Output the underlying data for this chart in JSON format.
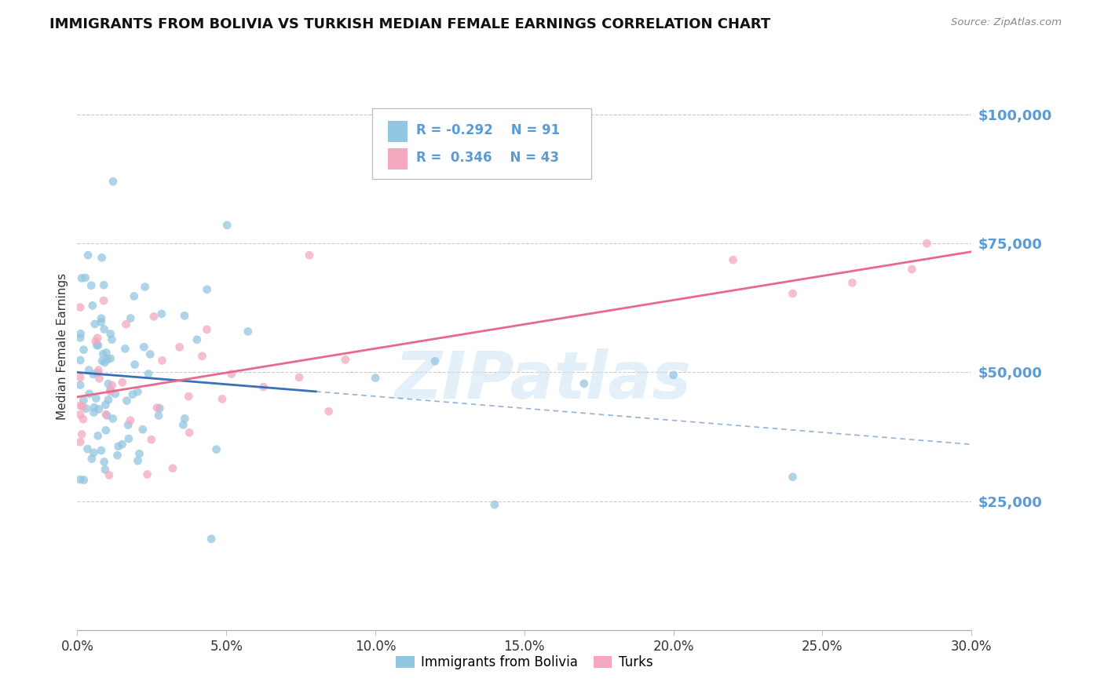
{
  "title": "IMMIGRANTS FROM BOLIVIA VS TURKISH MEDIAN FEMALE EARNINGS CORRELATION CHART",
  "source": "Source: ZipAtlas.com",
  "ylabel": "Median Female Earnings",
  "r_bolivia": -0.292,
  "n_bolivia": 91,
  "r_turks": 0.346,
  "n_turks": 43,
  "color_bolivia": "#93c6e0",
  "color_turks": "#f4a8be",
  "color_bolivia_line": "#3b6fba",
  "color_turks_line": "#e86a8a",
  "color_axis_labels": "#5b9bd5",
  "xlim": [
    0.0,
    0.3
  ],
  "ylim": [
    0,
    110000
  ],
  "yticks": [
    25000,
    50000,
    75000,
    100000
  ],
  "ytick_labels": [
    "$25,000",
    "$50,000",
    "$75,000",
    "$100,000"
  ],
  "xticks": [
    0.0,
    0.05,
    0.1,
    0.15,
    0.2,
    0.25,
    0.3
  ],
  "xtick_labels": [
    "0.0%",
    "5.0%",
    "10.0%",
    "15.0%",
    "20.0%",
    "25.0%",
    "30.0%"
  ],
  "watermark": "ZIPatlas",
  "legend_labels": [
    "Immigrants from Bolivia",
    "Turks"
  ],
  "bolivia_seed": 7,
  "turks_seed": 13,
  "bolivia_line_solid_end": 0.08,
  "bolivia_line_dash_end": 0.3
}
